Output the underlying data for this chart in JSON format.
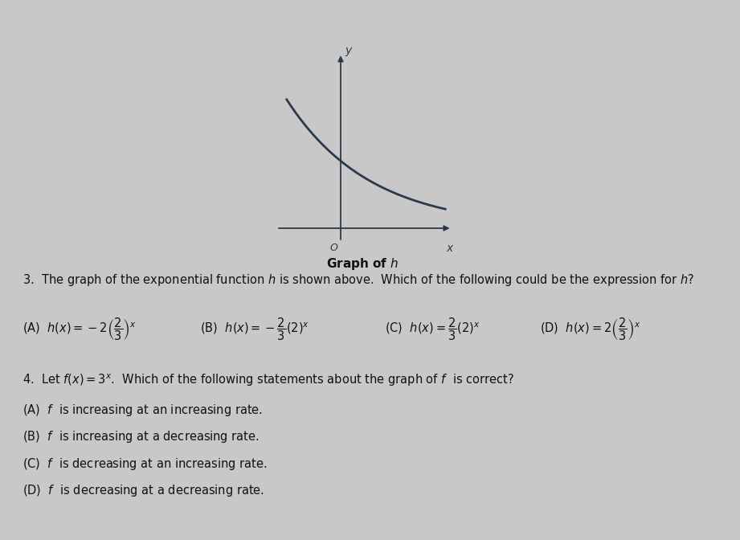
{
  "bg_color": "#c8c8c8",
  "graph_bg": "#c8c8c8",
  "curve_color": "#2a3a4a",
  "axis_color": "#2a3a4a",
  "graph_title": "Graph of $h$",
  "q3_text": "3.  The graph of the exponential function $h$ is shown above.  Which of the following could be the expression for $h$?",
  "q3_options": [
    "(A)  $h(x)=-2\\left(\\dfrac{2}{3}\\right)^x$",
    "(B)  $h(x)=-\\dfrac{2}{3}(2)^x$",
    "(C)  $h(x)=\\dfrac{2}{3}(2)^x$",
    "(D)  $h(x)=2\\left(\\dfrac{2}{3}\\right)^x$"
  ],
  "q4_text": "4.  Let $f\\left(x\\right)=3^x$.  Which of the following statements about the graph of $f$  is correct?",
  "q4_options": [
    "(A)  $f$  is increasing at an increasing rate.",
    "(B)  $f$  is increasing at a decreasing rate.",
    "(C)  $f$  is decreasing at an increasing rate.",
    "(D)  $f$  is decreasing at a decreasing rate."
  ],
  "text_color": "#111111",
  "font_size_body": 10.5,
  "font_size_opt": 10.5,
  "tab_color": "#aaaaaa"
}
